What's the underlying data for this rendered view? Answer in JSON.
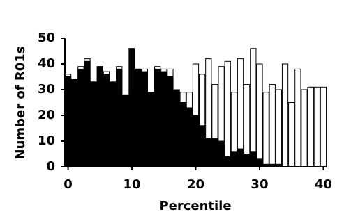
{
  "chart_data": {
    "type": "bar",
    "x_label": "Percentile",
    "y_label": "Number of R01s",
    "x": [
      0,
      1,
      2,
      3,
      4,
      5,
      6,
      7,
      8,
      9,
      10,
      11,
      12,
      13,
      14,
      15,
      16,
      17,
      18,
      19,
      20,
      21,
      22,
      23,
      24,
      25,
      26,
      27,
      28,
      29,
      30,
      31,
      32,
      33,
      34,
      35,
      36,
      37,
      38,
      39,
      40
    ],
    "series": [
      {
        "color": "#ffffff",
        "values": [
          36,
          34,
          39,
          42,
          33,
          39,
          37,
          33,
          39,
          28,
          46,
          38,
          38,
          29,
          39,
          38,
          38,
          30,
          29,
          29,
          40,
          36,
          42,
          32,
          39,
          41,
          29,
          42,
          32,
          46,
          40,
          29,
          32,
          30,
          40,
          25,
          38,
          30,
          31,
          31,
          31
        ]
      },
      {
        "color": "#000000",
        "values": [
          35,
          34,
          38,
          41,
          33,
          39,
          36,
          33,
          38,
          28,
          46,
          38,
          37,
          29,
          38,
          37,
          35,
          30,
          25,
          23,
          20,
          16,
          11,
          11,
          10,
          4,
          6,
          7,
          5,
          6,
          3,
          1,
          1,
          1,
          0,
          0,
          0,
          0,
          0,
          0,
          0
        ]
      }
    ],
    "xlim": [
      -0.5,
      40.5
    ],
    "xticks": [
      0,
      10,
      20,
      30,
      40
    ],
    "ylim": [
      0,
      50
    ],
    "yticks": [
      0,
      10,
      20,
      30,
      40,
      50
    ]
  }
}
